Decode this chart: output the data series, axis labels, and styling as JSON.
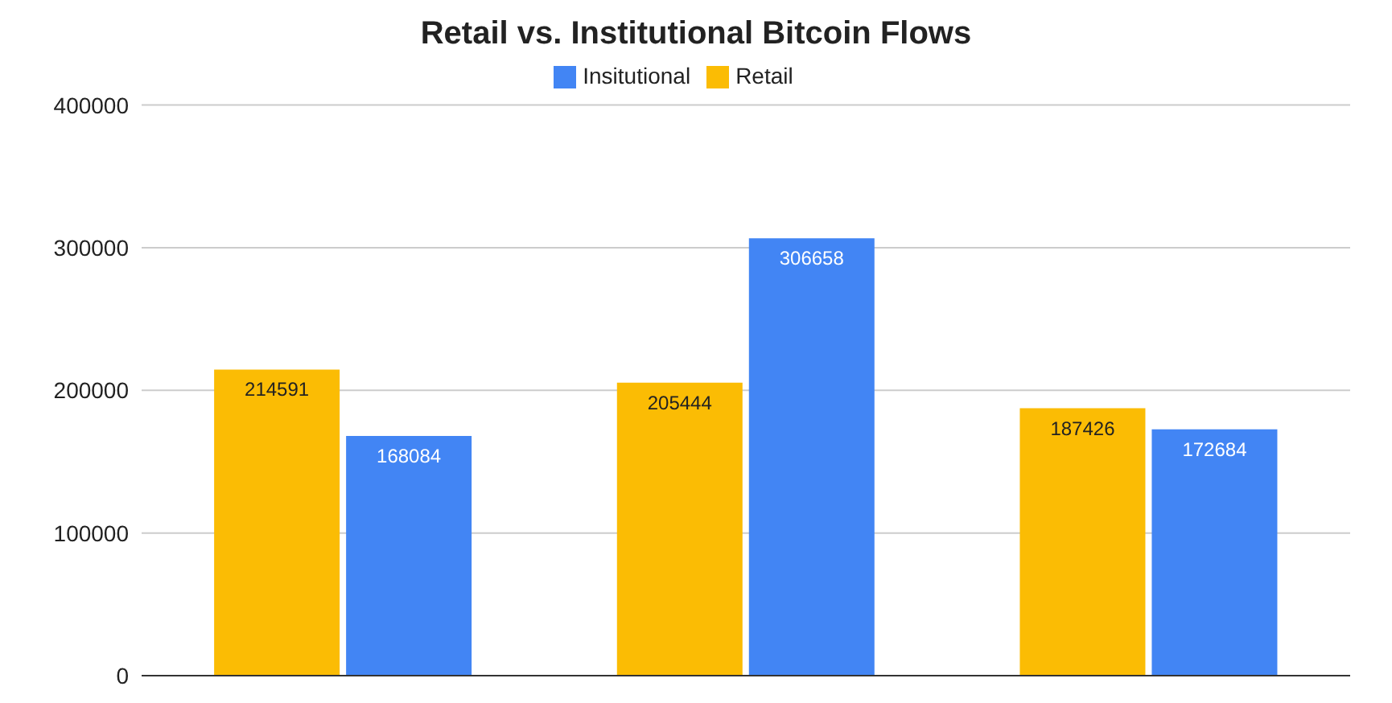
{
  "chart_data": {
    "type": "bar",
    "title": "Retail vs. Institutional Bitcoin Flows",
    "categories": [
      null,
      null,
      null
    ],
    "series": [
      {
        "name": "Retail",
        "color": "#fbbc04",
        "values": [
          214591,
          205444,
          187426
        ]
      },
      {
        "name": "Insitutional",
        "color": "#4285f4",
        "values": [
          168084,
          306658,
          172684
        ]
      }
    ],
    "ylim": [
      0,
      400000
    ],
    "yticks": [
      0,
      100000,
      200000,
      300000,
      400000
    ],
    "grid": "y",
    "legend": "top",
    "data_labels": true,
    "tick_labels": "y"
  }
}
